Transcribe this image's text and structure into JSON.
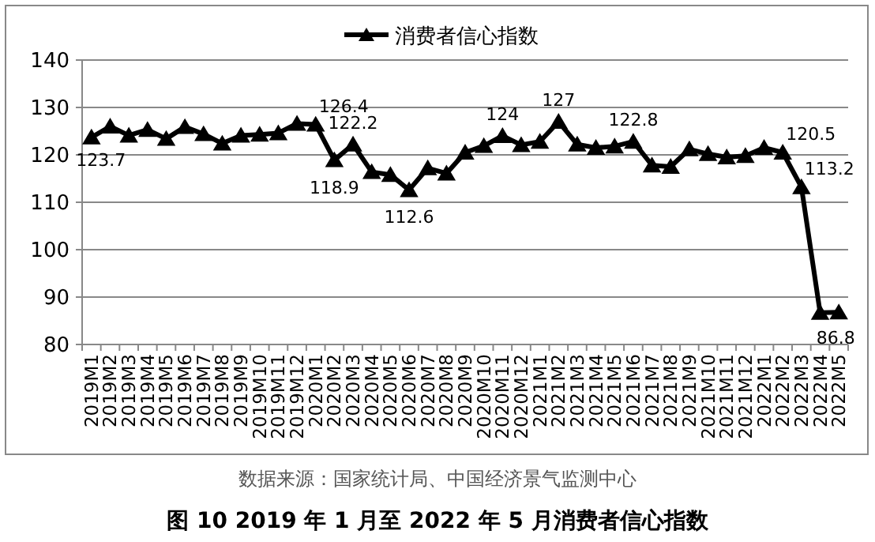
{
  "chart_data": {
    "type": "line",
    "title": "图 10   2019 年 1 月至 2022 年 5 月消费者信心指数",
    "annotations": [
      "数据来源：国家统计局、中国经济景气监测中心"
    ],
    "categories": [
      "2019M1",
      "2019M2",
      "2019M3",
      "2019M4",
      "2019M5",
      "2019M6",
      "2019M7",
      "2019M8",
      "2019M9",
      "2019M10",
      "2019M11",
      "2019M12",
      "2020M1",
      "2020M2",
      "2020M3",
      "2020M4",
      "2020M5",
      "2020M6",
      "2020M7",
      "2020M8",
      "2020M9",
      "2020M10",
      "2020M11",
      "2020M12",
      "2021M1",
      "2021M2",
      "2021M3",
      "2021M4",
      "2021M5",
      "2021M6",
      "2021M7",
      "2021M8",
      "2021M9",
      "2021M10",
      "2021M11",
      "2021M12",
      "2022M1",
      "2022M2",
      "2022M3",
      "2022M4",
      "2022M5"
    ],
    "series": [
      {
        "name": "消费者信心指数",
        "color": "#000000",
        "values": [
          123.7,
          126.0,
          124.1,
          125.3,
          123.4,
          125.9,
          124.4,
          122.4,
          124.1,
          124.3,
          124.6,
          126.6,
          126.4,
          118.9,
          122.2,
          116.4,
          115.8,
          112.6,
          117.2,
          116.1,
          120.5,
          121.9,
          124.0,
          122.1,
          122.8,
          127.0,
          122.2,
          121.5,
          121.8,
          122.8,
          117.8,
          117.5,
          121.2,
          120.2,
          119.5,
          119.8,
          121.5,
          120.5,
          113.2,
          86.7,
          86.8
        ],
        "value_labels": [
          "123.7",
          null,
          null,
          null,
          null,
          null,
          null,
          null,
          null,
          null,
          null,
          null,
          "126.4",
          "118.9",
          "122.2",
          null,
          null,
          "112.6",
          null,
          null,
          null,
          null,
          "124",
          null,
          null,
          "127",
          null,
          null,
          null,
          "122.8",
          null,
          null,
          null,
          null,
          null,
          null,
          null,
          "120.5",
          "113.2",
          null,
          "86.8"
        ]
      }
    ],
    "ylim": [
      80,
      140
    ],
    "yticks": [
      80,
      90,
      100,
      110,
      120,
      130,
      140
    ],
    "grid": "y",
    "legend": "top",
    "marker": "triangle",
    "line_style": "solid"
  }
}
